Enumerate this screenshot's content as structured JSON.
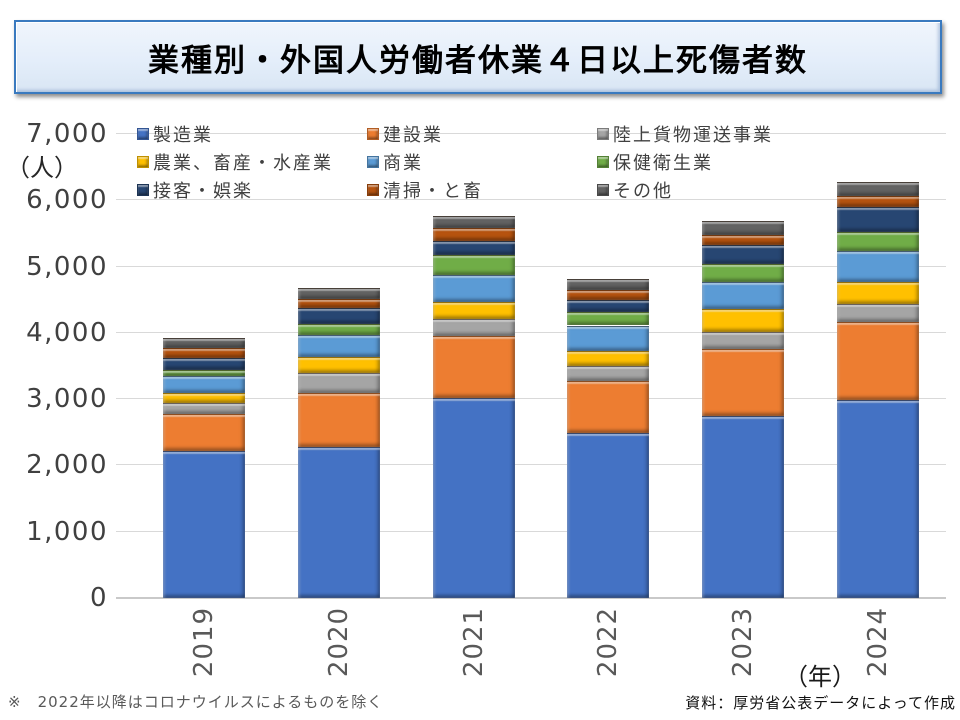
{
  "title": "業種別・外国人労働者休業４日以上死傷者数",
  "y_axis": {
    "unit_label": "（人）",
    "ticks": [
      {
        "value": 0,
        "label": "0"
      },
      {
        "value": 1000,
        "label": "1,000"
      },
      {
        "value": 2000,
        "label": "2,000"
      },
      {
        "value": 3000,
        "label": "3,000"
      },
      {
        "value": 4000,
        "label": "4,000"
      },
      {
        "value": 5000,
        "label": "5,000"
      },
      {
        "value": 6000,
        "label": "6,000"
      },
      {
        "value": 7000,
        "label": "7,000"
      }
    ]
  },
  "x_axis": {
    "unit_label": "（年）"
  },
  "chart_data": {
    "type": "bar",
    "stacked": true,
    "title": "業種別・外国人労働者休業４日以上死傷者数",
    "categories": [
      "2019",
      "2020",
      "2021",
      "2022",
      "2023",
      "2024"
    ],
    "xlabel": "（年）",
    "ylabel": "（人）",
    "ylim": [
      0,
      7000
    ],
    "ytick_step": 1000,
    "grid": true,
    "legend_position": "top-inside",
    "series": [
      {
        "name": "製造業",
        "color": "#4472C4",
        "values": [
          2210,
          2270,
          3020,
          2490,
          2740,
          2990
        ]
      },
      {
        "name": "建設業",
        "color": "#ED7D31",
        "values": [
          560,
          820,
          930,
          780,
          1020,
          1180
        ]
      },
      {
        "name": "陸上貨物運送事業",
        "color": "#A5A5A5",
        "values": [
          170,
          310,
          265,
          228,
          250,
          265
        ]
      },
      {
        "name": "農業、畜産・水産業",
        "color": "#FFC000",
        "values": [
          150,
          230,
          255,
          227,
          355,
          330
        ]
      },
      {
        "name": "商業",
        "color": "#5B9BD5",
        "values": [
          265,
          330,
          405,
          385,
          400,
          470
        ]
      },
      {
        "name": "保健衛生業",
        "color": "#70AD47",
        "values": [
          80,
          175,
          295,
          205,
          280,
          280
        ]
      },
      {
        "name": "接客・娯楽",
        "color": "#274672",
        "values": [
          185,
          240,
          220,
          175,
          285,
          385
        ]
      },
      {
        "name": "清掃・と畜",
        "color": "#B6530F",
        "values": [
          155,
          135,
          195,
          150,
          150,
          165
        ]
      },
      {
        "name": "その他",
        "color": "#636363",
        "values": [
          153,
          172,
          180,
          168,
          210,
          205
        ]
      }
    ]
  },
  "footnote": "※　2022年以降はコロナウイルスによるものを除く",
  "source": "資料：厚労省公表データによって作成"
}
